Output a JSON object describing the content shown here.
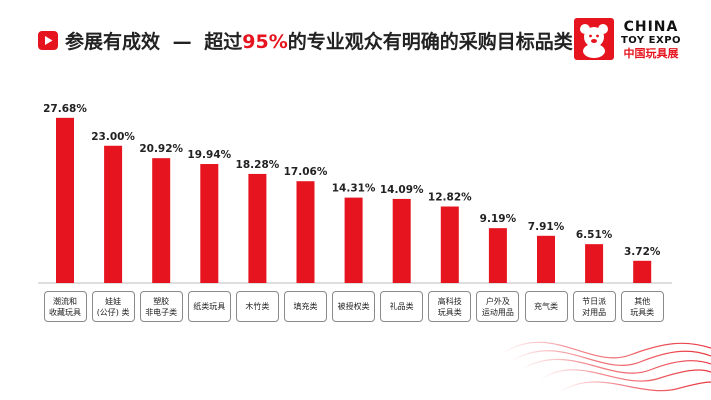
{
  "header": {
    "title_main": "参展有成效",
    "title_dash": "—",
    "title_pre": "超过",
    "title_percent": "95%",
    "title_post": "的专业观众有明确的采购目标品类"
  },
  "logo": {
    "line1": "CHINA",
    "line2": "TOY EXPO",
    "line3": "中国玩具展",
    "registered": "®"
  },
  "colors": {
    "accent": "#e5141e",
    "bar": "#e5141e",
    "text": "#222222"
  },
  "chart_data": {
    "type": "bar",
    "categories": [
      "潮流和\n收藏玩具",
      "娃娃\n(公仔) 类",
      "塑胶\n非电子类",
      "纸类玩具",
      "木竹类",
      "填充类",
      "被授权类",
      "礼品类",
      "高科技\n玩具类",
      "户外及\n运动用品",
      "充气类",
      "节日派\n对用品",
      "其他\n玩具类"
    ],
    "values": [
      27.68,
      23.0,
      20.92,
      19.94,
      18.28,
      17.06,
      14.31,
      14.09,
      12.82,
      9.19,
      7.91,
      6.51,
      3.72
    ],
    "value_labels": [
      "27.68%",
      "23.00%",
      "20.92%",
      "19.94%",
      "18.28%",
      "17.06%",
      "14.31%",
      "14.09%",
      "12.82%",
      "9.19%",
      "7.91%",
      "6.51%",
      "3.72%"
    ],
    "ylim": [
      0,
      30
    ],
    "grid": false,
    "legend": "none"
  }
}
